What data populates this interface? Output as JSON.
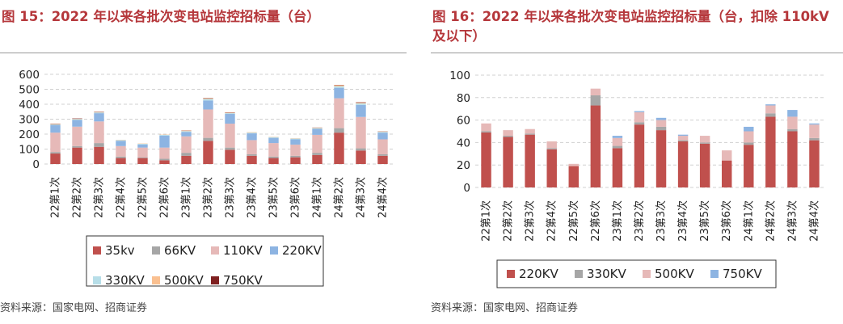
{
  "figures": [
    {
      "title": "图 15：2022 年以来各批次变电站监控招标量（台）",
      "source": "资料来源：国家电网、招商证券"
    },
    {
      "title": "图 16：2022 年以来各批次变电站监控招标量（台，扣除 110kV 及以下）",
      "source": "资料来源：国家电网、招商证券"
    }
  ],
  "chart_data": [
    {
      "type": "bar",
      "stacked": true,
      "title": "2022 年以来各批次变电站监控招标量（台）",
      "categories": [
        "22第1次",
        "22第2次",
        "22第3次",
        "22第4次",
        "22第5次",
        "22第6次",
        "23第1次",
        "23第2次",
        "23第3次",
        "23第4次",
        "23第5次",
        "23第6次",
        "24第1次",
        "24第2次",
        "24第3次",
        "24第4次"
      ],
      "ylim": [
        0,
        600
      ],
      "yticks": [
        "0",
        "100",
        "200",
        "300",
        "400",
        "500",
        "600"
      ],
      "grid": true,
      "legend_position": "bottom",
      "series": [
        {
          "name": "35kv",
          "color": "#c0504d",
          "values": [
            70,
            110,
            115,
            40,
            40,
            25,
            55,
            155,
            95,
            55,
            40,
            45,
            60,
            210,
            90,
            55
          ]
        },
        {
          "name": "66KV",
          "color": "#a6a6a6",
          "values": [
            10,
            10,
            25,
            10,
            5,
            10,
            20,
            20,
            15,
            10,
            10,
            10,
            15,
            30,
            15,
            10
          ]
        },
        {
          "name": "110KV",
          "color": "#e6b9b8",
          "values": [
            130,
            130,
            145,
            70,
            65,
            75,
            110,
            190,
            160,
            95,
            90,
            75,
            120,
            200,
            210,
            100
          ]
        },
        {
          "name": "220KV",
          "color": "#8db4e2",
          "values": [
            50,
            45,
            55,
            35,
            20,
            80,
            30,
            60,
            65,
            45,
            35,
            35,
            40,
            70,
            80,
            45
          ]
        },
        {
          "name": "330KV",
          "color": "#b7dee8",
          "values": [
            5,
            5,
            5,
            5,
            5,
            5,
            5,
            10,
            5,
            5,
            5,
            5,
            5,
            10,
            10,
            5
          ]
        },
        {
          "name": "500KV",
          "color": "#fac090",
          "values": [
            3,
            3,
            3,
            2,
            2,
            2,
            4,
            5,
            3,
            3,
            2,
            2,
            3,
            7,
            5,
            3
          ]
        },
        {
          "name": "750KV",
          "color": "#7f2020",
          "values": [
            2,
            2,
            2,
            0,
            0,
            0,
            1,
            2,
            2,
            0,
            0,
            0,
            1,
            2,
            3,
            1
          ]
        }
      ]
    },
    {
      "type": "bar",
      "stacked": true,
      "title": "2022 年以来各批次变电站监控招标量（台，扣除 110kV 及以下）",
      "categories": [
        "22第1次",
        "22第2次",
        "22第3次",
        "22第4次",
        "22第5次",
        "22第6次",
        "23第1次",
        "23第2次",
        "23第3次",
        "23第4次",
        "23第5次",
        "23第6次",
        "24第1次",
        "24第2次",
        "24第3次",
        "24第4次"
      ],
      "ylim": [
        0,
        100
      ],
      "yticks": [
        "0",
        "20",
        "40",
        "60",
        "80",
        "100"
      ],
      "grid": true,
      "legend_position": "bottom",
      "series": [
        {
          "name": "220KV",
          "color": "#c0504d",
          "values": [
            49,
            45,
            47,
            34,
            19,
            73,
            35,
            56,
            51,
            41,
            39,
            24,
            38,
            63,
            50,
            42
          ]
        },
        {
          "name": "330KV",
          "color": "#a6a6a6",
          "values": [
            1,
            1,
            1,
            1,
            0,
            9,
            2,
            2,
            3,
            1,
            1,
            0,
            2,
            3,
            2,
            2
          ]
        },
        {
          "name": "500KV",
          "color": "#e6b9b8",
          "values": [
            7,
            5,
            4,
            6,
            2,
            6,
            7,
            9,
            6,
            4,
            6,
            9,
            10,
            7,
            11,
            12
          ]
        },
        {
          "name": "750KV",
          "color": "#8db4e2",
          "values": [
            0,
            0,
            0,
            0,
            0,
            0,
            2,
            1,
            2,
            1,
            0,
            0,
            4,
            1,
            6,
            1
          ]
        }
      ]
    }
  ]
}
